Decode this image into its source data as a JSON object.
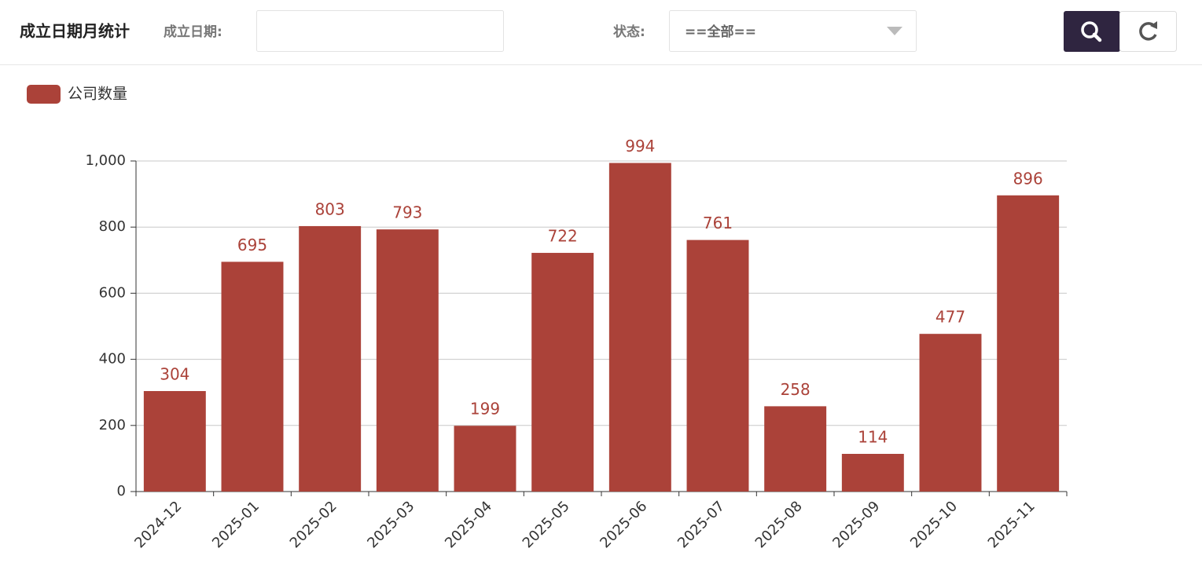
{
  "header": {
    "title": "成立日期月统计",
    "date_label": "成立日期:",
    "status_label": "状态:",
    "status_value": "==全部=="
  },
  "chart_data": {
    "type": "bar",
    "categories": [
      "2024-12",
      "2025-01",
      "2025-02",
      "2025-03",
      "2025-04",
      "2025-05",
      "2025-06",
      "2025-07",
      "2025-08",
      "2025-09",
      "2025-10",
      "2025-11"
    ],
    "series": [
      {
        "name": "公司数量",
        "color": "#ab4239",
        "values": [
          304,
          695,
          803,
          793,
          199,
          722,
          994,
          761,
          258,
          114,
          477,
          896
        ]
      }
    ],
    "ylim": [
      0,
      1000
    ],
    "yticks": [
      0,
      200,
      400,
      600,
      800,
      {
        "value": 1000,
        "label": "1,000"
      }
    ],
    "grid": true,
    "legend": "top-left"
  }
}
